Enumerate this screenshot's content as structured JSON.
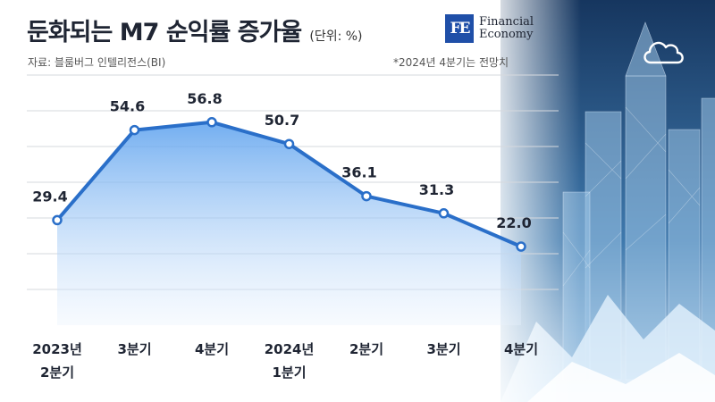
{
  "header": {
    "title": "둔화되는 M7 순익률 증가율",
    "unit": "(단위: %)",
    "source": "자료: 블룸버그 인텔리전스(BI)",
    "note": "*2024년 4분기는 전망치"
  },
  "logo": {
    "mark": "FE",
    "line1": "Financial",
    "line2": "Economy"
  },
  "colors": {
    "line": "#2a6fc9",
    "area_top": "#5aa0ee",
    "area_bottom": "#e8f2fd",
    "grid": "#d6d9de",
    "text": "#1f2533"
  },
  "chart_data": {
    "type": "area",
    "categories": [
      [
        "2023년",
        "2분기"
      ],
      [
        "3분기"
      ],
      [
        "4분기"
      ],
      [
        "2024년",
        "1분기"
      ],
      [
        "2분기"
      ],
      [
        "3분기"
      ],
      [
        "4분기"
      ]
    ],
    "series": [
      {
        "values": [
          29.4,
          54.6,
          56.8,
          50.7,
          36.1,
          31.3,
          22.0
        ]
      }
    ],
    "data_labels": [
      "29.4",
      "54.6",
      "56.8",
      "50.7",
      "36.1",
      "31.3",
      "22.0"
    ],
    "ylim": [
      0,
      70
    ],
    "grid": true,
    "markers": "hollow-circle"
  },
  "icons": {
    "cloud": "cloud-icon"
  }
}
